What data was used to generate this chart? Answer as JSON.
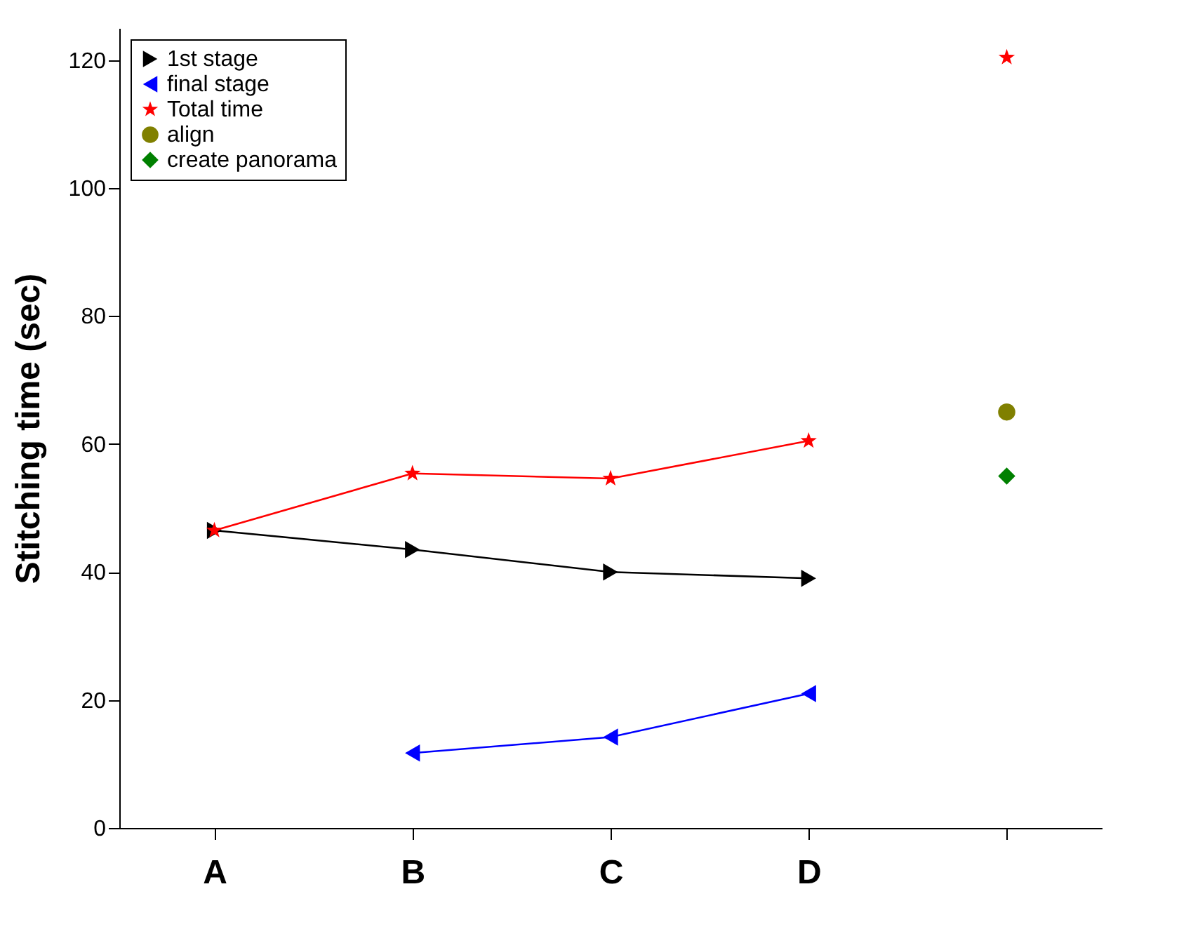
{
  "chart_data": {
    "type": "line",
    "ylabel": "Stitching time (sec)",
    "categories": [
      "A",
      "B",
      "C",
      "D",
      null
    ],
    "ylim": [
      0,
      125
    ],
    "yticks": [
      0,
      20,
      40,
      60,
      80,
      100,
      120
    ],
    "grid": false,
    "legend": "top left",
    "series": [
      {
        "name": "1st stage",
        "color": "#000000",
        "marker": "triangle-right",
        "values": [
          46.5,
          43.5,
          40,
          39,
          null
        ]
      },
      {
        "name": "final stage",
        "color": "#0000ff",
        "marker": "triangle-left",
        "values": [
          null,
          11.7,
          14.2,
          21,
          null
        ]
      },
      {
        "name": "Total time",
        "color": "#ff0000",
        "marker": "star",
        "values": [
          46.5,
          55.4,
          54.6,
          60.5,
          null
        ]
      },
      {
        "name": "align",
        "color": "#808000",
        "type": "scatter",
        "marker": "circle",
        "values": [
          null,
          null,
          null,
          null,
          65
        ]
      },
      {
        "name": "create panorama",
        "color": "#008000",
        "type": "scatter",
        "marker": "diamond",
        "values": [
          null,
          null,
          null,
          null,
          55
        ]
      },
      {
        "color": "#ff0000",
        "type": "scatter",
        "marker": "star",
        "values": [
          null,
          null,
          null,
          null,
          120.4
        ]
      }
    ]
  }
}
